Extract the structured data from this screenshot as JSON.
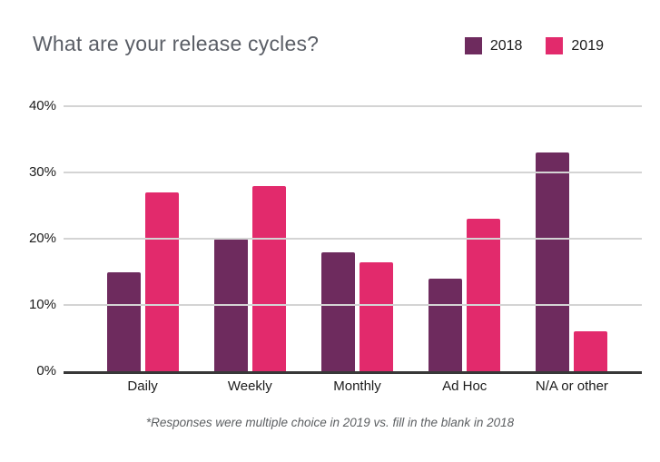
{
  "title": "What are your release cycles?",
  "footnote": "*Responses were multiple choice in 2019 vs. fill in the blank in 2018",
  "colors": {
    "series_2018": "#6E2B5E",
    "series_2019": "#E22A6C",
    "gridline": "#D4D4D4",
    "axis_line": "#383838",
    "title_text": "#5A5E66"
  },
  "chart_data": {
    "type": "bar",
    "title": "What are your release cycles?",
    "categories": [
      "Daily",
      "Weekly",
      "Monthly",
      "Ad Hoc",
      "N/A or other"
    ],
    "series": [
      {
        "name": "2018",
        "color": "#6E2B5E",
        "values": [
          15,
          20,
          18,
          14,
          33
        ]
      },
      {
        "name": "2019",
        "color": "#E22A6C",
        "values": [
          27,
          28,
          16.5,
          23,
          6
        ]
      }
    ],
    "xlabel": "",
    "ylabel": "",
    "ylim": [
      0,
      40
    ],
    "yticks": [
      0,
      10,
      20,
      30,
      40
    ],
    "ytick_labels": [
      "0%",
      "10%",
      "20%",
      "30%",
      "40%"
    ],
    "grid": true,
    "legend_position": "top-right",
    "annotation": "*Responses were multiple choice in 2019 vs. fill in the blank in 2018"
  }
}
